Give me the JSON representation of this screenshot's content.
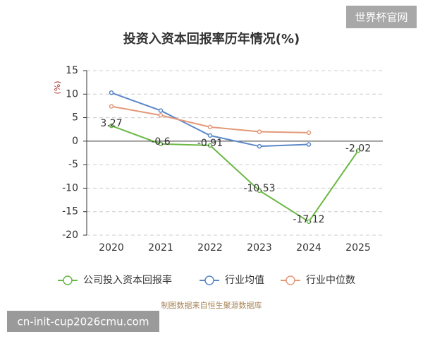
{
  "chart_data": {
    "type": "line",
    "title": "投资入资本回报率历年情况(%)",
    "y_label": "(%)",
    "categories": [
      "2020",
      "2021",
      "2022",
      "2023",
      "2024",
      "2025"
    ],
    "series": [
      {
        "name": "公司投入资本回报率",
        "color": "#6ab844",
        "values": [
          3.27,
          -0.6,
          -0.91,
          -10.53,
          -17.12,
          -2.02
        ],
        "show_labels": true
      },
      {
        "name": "行业均值",
        "color": "#5b87c7",
        "values": [
          10.3,
          6.5,
          1.2,
          -1.1,
          -0.7,
          null
        ]
      },
      {
        "name": "行业中位数",
        "color": "#e3997a",
        "values": [
          7.4,
          5.5,
          3.0,
          2.0,
          1.8,
          null
        ]
      }
    ],
    "ylim": [
      -20,
      15
    ],
    "yticks": [
      -20,
      -15,
      -10,
      -5,
      0,
      5,
      10,
      15
    ],
    "grid": true,
    "source": "制图数据来自恒生聚源数据库"
  },
  "watermark": "世界杯官网",
  "overlay_text": "cn-init-cup2026cmu.com"
}
